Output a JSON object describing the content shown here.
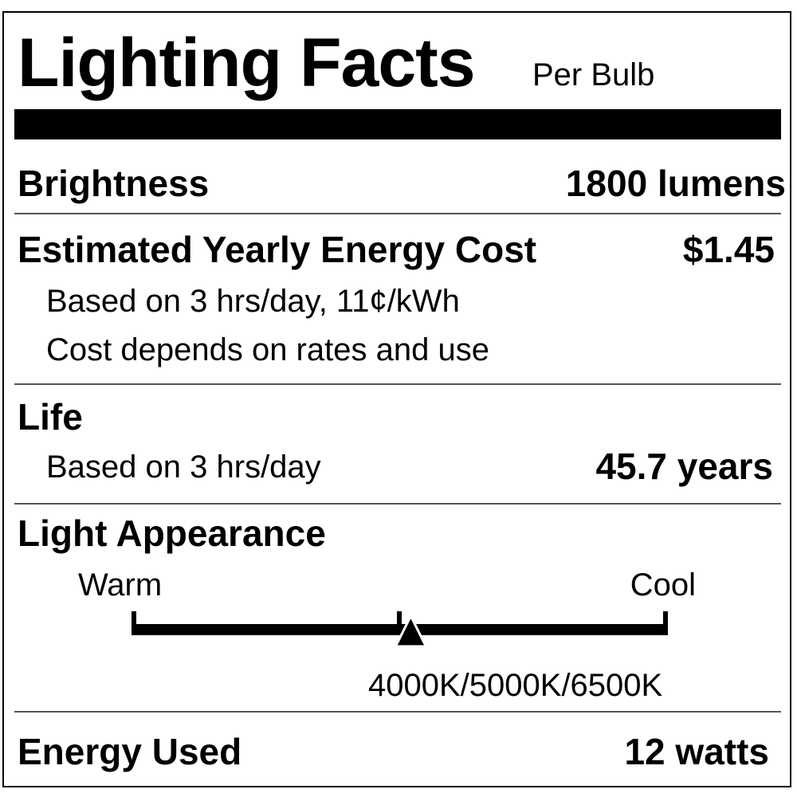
{
  "title": "Lighting Facts",
  "subtitle": "Per Bulb",
  "brightness": {
    "label": "Brightness",
    "value": "1800 lumens"
  },
  "energy_cost": {
    "label": "Estimated Yearly Energy Cost",
    "value": "$1.45",
    "note1": "Based on 3 hrs/day, 11¢/kWh",
    "note2": "Cost depends on rates and use"
  },
  "life": {
    "label": "Life",
    "note": "Based on 3 hrs/day",
    "value": "45.7 years"
  },
  "light_appearance": {
    "label": "Light Appearance",
    "warm_label": "Warm",
    "cool_label": "Cool",
    "marker_fraction": 0.52,
    "value": "4000K/5000K/6500K"
  },
  "energy_used": {
    "label": "Energy Used",
    "value": "12 watts"
  }
}
